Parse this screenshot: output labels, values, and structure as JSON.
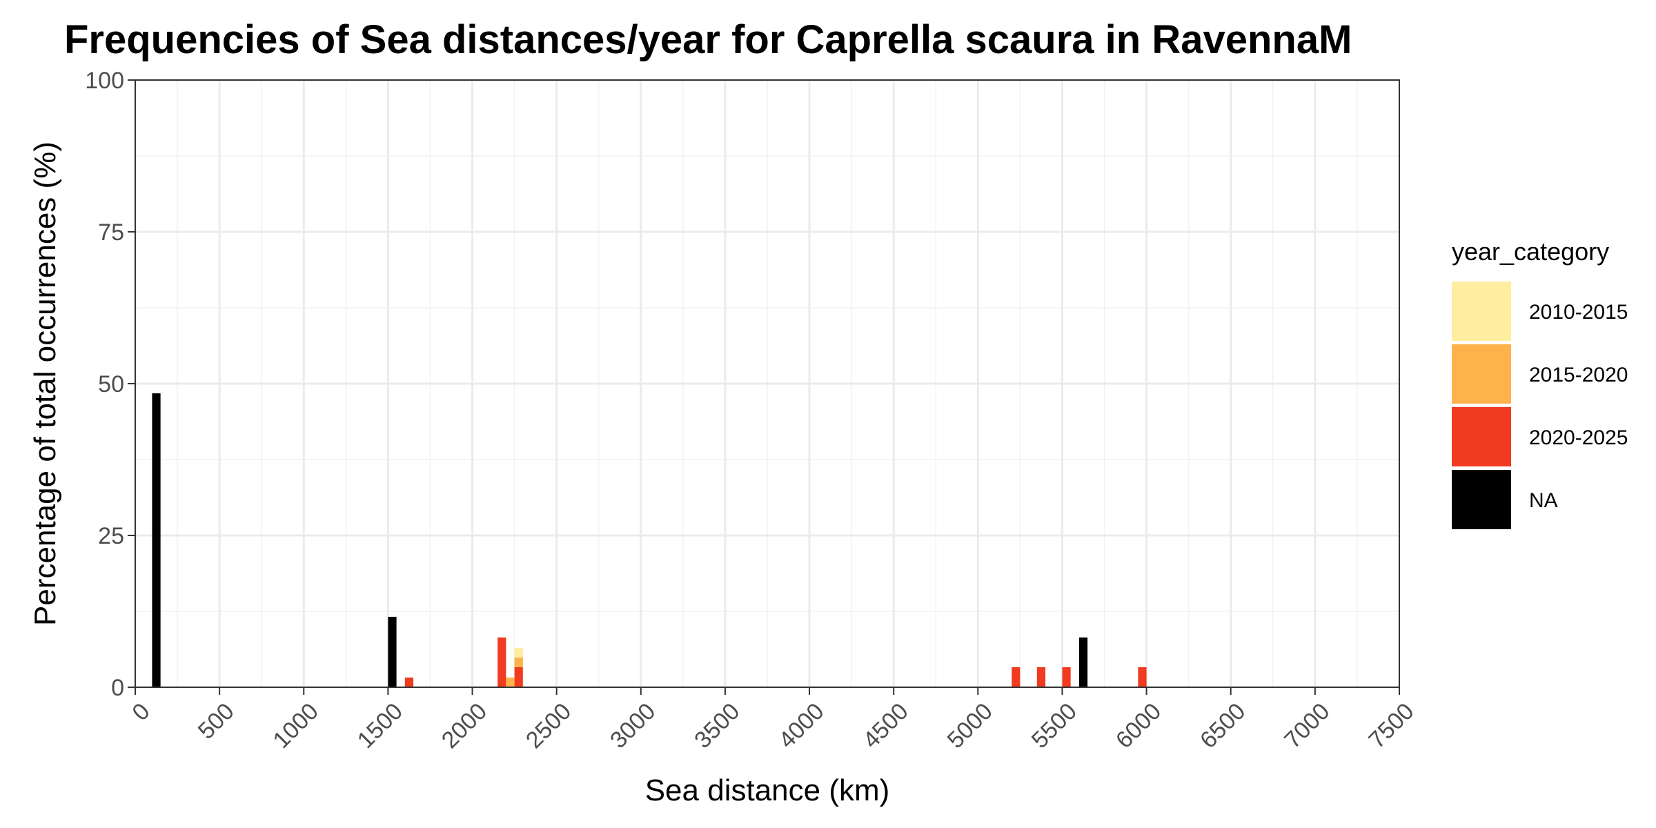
{
  "chart_data": {
    "type": "bar",
    "stacked": true,
    "title": "Frequencies of Sea distances/year for Caprella scaura in RavennaM",
    "xlabel": "Sea distance (km)",
    "ylabel": "Percentage of total occurrences (%)",
    "xlim": [
      0,
      7500
    ],
    "ylim": [
      0,
      100
    ],
    "x_ticks": [
      "0",
      "500",
      "1000",
      "1500",
      "2000",
      "2500",
      "3000",
      "3500",
      "4000",
      "4500",
      "5000",
      "5500",
      "6000",
      "6500",
      "7000",
      "7500"
    ],
    "y_ticks": [
      "0",
      "25",
      "50",
      "75",
      "100"
    ],
    "grid": true,
    "bin_width": 50,
    "legend": {
      "title": "year_category",
      "position": "right",
      "entries": [
        {
          "label": "2010-2015",
          "color": "#FFEDA0"
        },
        {
          "label": "2015-2020",
          "color": "#FEB24C"
        },
        {
          "label": "2020-2025",
          "color": "#F03B20"
        },
        {
          "label": "NA",
          "color": "#000000"
        }
      ]
    },
    "series": [
      {
        "name": "NA",
        "color": "#000000",
        "points": [
          [
            125,
            48.4
          ],
          [
            1525,
            11.6
          ],
          [
            5625,
            8.2
          ]
        ]
      },
      {
        "name": "2020-2025",
        "color": "#F03B20",
        "points": [
          [
            1625,
            1.6
          ],
          [
            2175,
            8.2
          ],
          [
            2275,
            3.3
          ],
          [
            5225,
            3.3
          ],
          [
            5375,
            3.3
          ],
          [
            5525,
            3.3
          ],
          [
            5975,
            3.3
          ]
        ]
      },
      {
        "name": "2015-2020",
        "color": "#FEB24C",
        "points": [
          [
            2225,
            1.6
          ],
          [
            2275,
            1.6
          ]
        ]
      },
      {
        "name": "2010-2015",
        "color": "#FFEDA0",
        "points": [
          [
            2275,
            1.6
          ]
        ]
      }
    ]
  }
}
